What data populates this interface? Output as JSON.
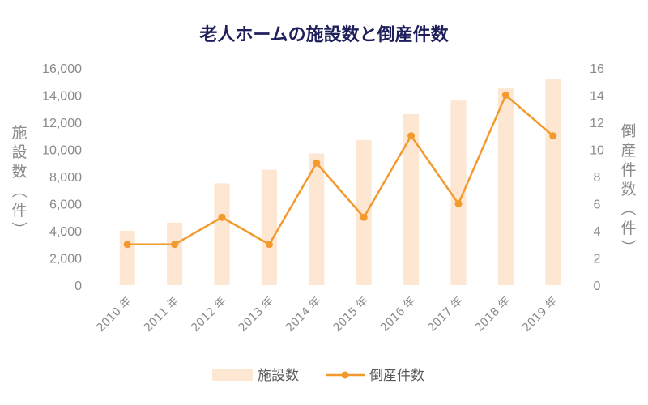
{
  "chart_data": {
    "type": "bar+line",
    "title": "老人ホームの施設数と倒産件数",
    "categories": [
      "2010 年",
      "2011 年",
      "2012 年",
      "2013 年",
      "2014 年",
      "2015 年",
      "2016 年",
      "2017 年",
      "2018 年",
      "2019 年"
    ],
    "series": [
      {
        "name": "施設数",
        "type": "bar",
        "axis": "left",
        "values": [
          4000,
          4600,
          7500,
          8500,
          9700,
          10700,
          12600,
          13600,
          14500,
          15200
        ]
      },
      {
        "name": "倒産件数",
        "type": "line",
        "axis": "right",
        "values": [
          3,
          3,
          5,
          3,
          9,
          5,
          11,
          6,
          14,
          11
        ]
      }
    ],
    "y_left": {
      "label": "施設数（件）",
      "ylim": [
        0,
        16000
      ],
      "ticks": [
        "0",
        "2,000",
        "4,000",
        "6,000",
        "8,000",
        "10,000",
        "12,000",
        "14,000",
        "16,000"
      ]
    },
    "y_right": {
      "label": "倒産件数（件）",
      "ylim": [
        0,
        16
      ],
      "ticks": [
        "0",
        "2",
        "4",
        "6",
        "8",
        "10",
        "12",
        "14",
        "16"
      ]
    },
    "grid": false,
    "legend_position": "bottom",
    "colors": {
      "bar": "#fde6d2",
      "line": "#f29a2e",
      "title": "#1f1f5c",
      "axis_text": "#8a8a8a"
    }
  }
}
